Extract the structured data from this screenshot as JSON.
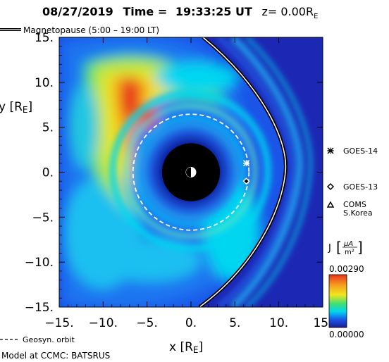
{
  "chart_data": {
    "type": "heatmap",
    "title_date": "08/27/2019",
    "title_time_label": "Time =",
    "title_time": "19:33:25 UT",
    "title_z": "z= 0.00R",
    "title_z_sub": "E",
    "xlabel": "x [R",
    "xlabel_sub": "E",
    "xlabel_end": "]",
    "ylabel": "y [R",
    "ylabel_sub": "E",
    "ylabel_end": "]",
    "xlim": [
      -15,
      15
    ],
    "ylim": [
      -15,
      15
    ],
    "x_ticks": [
      -15,
      -10,
      -5,
      0,
      5,
      10,
      15
    ],
    "x_tick_labels": [
      "−15.",
      "−10.",
      "−5.",
      "0.",
      "5.",
      "10.",
      "15."
    ],
    "y_ticks": [
      15,
      10,
      5,
      0,
      -5,
      -10,
      -15
    ],
    "y_tick_labels": [
      "15.",
      "10.",
      "5.",
      "0.",
      "−5.",
      "−10.",
      "−15."
    ],
    "earth_radius_re": 3.3,
    "geosync_radius_re": 6.6,
    "legend_magnetopause": "Magnetopause (5:00 – 19:00 LT)",
    "legend_geosync": "Geosyn. orbit",
    "model_text": "Model at CCMC: BATSRUS",
    "colorbar": {
      "label": "J",
      "unit_num": "μA",
      "unit_den": "m²",
      "max_label": "0.00290",
      "min_label": "0.00000",
      "max": 0.0029,
      "min": 0.0
    },
    "satellites": [
      {
        "name": "GOES-14",
        "x": 6.3,
        "y": 1.0,
        "marker": "star"
      },
      {
        "name": "GOES-13",
        "x": 6.3,
        "y": -1.0,
        "marker": "diamond"
      },
      {
        "name": "COMS",
        "name2": "S.Korea",
        "x": null,
        "y": null,
        "marker": "triangle"
      }
    ],
    "colors": {
      "background_low": "#1a55e8",
      "ring_cyan": "#00d6f0",
      "peak_red": "#e8321e",
      "yellow": "#f0e61e",
      "outer_dark": "#1c28b4"
    }
  }
}
